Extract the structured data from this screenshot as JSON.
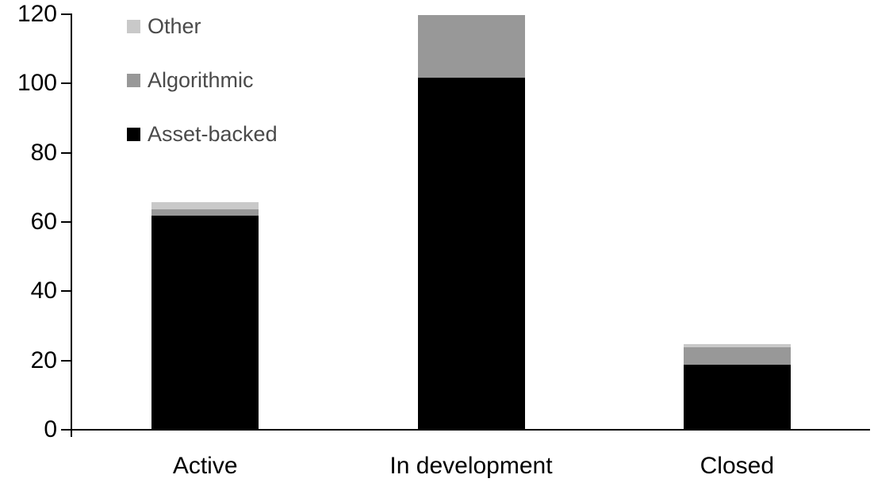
{
  "chart_data": {
    "type": "bar",
    "stacked": true,
    "categories": [
      "Active",
      "In development",
      "Closed"
    ],
    "series": [
      {
        "name": "Asset-backed",
        "color": "#000000",
        "values": [
          62,
          102,
          19
        ]
      },
      {
        "name": "Algorithmic",
        "color": "#989898",
        "values": [
          2,
          18,
          5
        ]
      },
      {
        "name": "Other",
        "color": "#C9C9C9",
        "values": [
          2,
          0,
          1
        ]
      }
    ],
    "ylim": [
      0,
      120
    ],
    "yticks": [
      0,
      20,
      40,
      60,
      80,
      100,
      120
    ],
    "ytick_labels": [
      "0",
      "20",
      "40",
      "60",
      "80",
      "100",
      "120"
    ],
    "grid": false,
    "legend": {
      "position": "top-left",
      "order": [
        "Other",
        "Algorithmic",
        "Asset-backed"
      ],
      "text_color": "#4a4a4a"
    },
    "axis_color": "#000000",
    "background_color": "#ffffff"
  }
}
